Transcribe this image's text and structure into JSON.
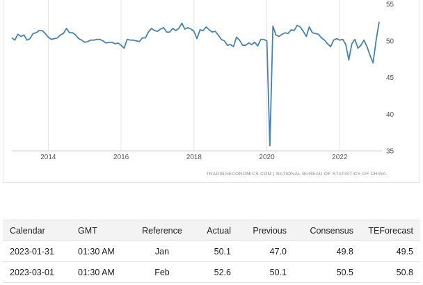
{
  "chart_data": {
    "type": "line",
    "y_ticks": [
      "55",
      "50",
      "45",
      "40",
      "35"
    ],
    "ylim": [
      35,
      55
    ],
    "x_ticks": [
      "2014",
      "2016",
      "2018",
      "2020",
      "2022"
    ],
    "x_range": [
      "2013-01",
      "2023-02"
    ],
    "grid": "vertical",
    "line_color": "#4682b4",
    "source": "TRADINGECONOMICS.COM | NATIONAL BUREAU OF STATISTICS OF CHINA",
    "x": [
      "2013-01",
      "2013-02",
      "2013-03",
      "2013-04",
      "2013-05",
      "2013-06",
      "2013-07",
      "2013-08",
      "2013-09",
      "2013-10",
      "2013-11",
      "2013-12",
      "2014-01",
      "2014-02",
      "2014-03",
      "2014-04",
      "2014-05",
      "2014-06",
      "2014-07",
      "2014-08",
      "2014-09",
      "2014-10",
      "2014-11",
      "2014-12",
      "2015-01",
      "2015-02",
      "2015-03",
      "2015-04",
      "2015-05",
      "2015-06",
      "2015-07",
      "2015-08",
      "2015-09",
      "2015-10",
      "2015-11",
      "2015-12",
      "2016-01",
      "2016-02",
      "2016-03",
      "2016-04",
      "2016-05",
      "2016-06",
      "2016-07",
      "2016-08",
      "2016-09",
      "2016-10",
      "2016-11",
      "2016-12",
      "2017-01",
      "2017-02",
      "2017-03",
      "2017-04",
      "2017-05",
      "2017-06",
      "2017-07",
      "2017-08",
      "2017-09",
      "2017-10",
      "2017-11",
      "2017-12",
      "2018-01",
      "2018-02",
      "2018-03",
      "2018-04",
      "2018-05",
      "2018-06",
      "2018-07",
      "2018-08",
      "2018-09",
      "2018-10",
      "2018-11",
      "2018-12",
      "2019-01",
      "2019-02",
      "2019-03",
      "2019-04",
      "2019-05",
      "2019-06",
      "2019-07",
      "2019-08",
      "2019-09",
      "2019-10",
      "2019-11",
      "2019-12",
      "2020-01",
      "2020-02",
      "2020-03",
      "2020-04",
      "2020-05",
      "2020-06",
      "2020-07",
      "2020-08",
      "2020-09",
      "2020-10",
      "2020-11",
      "2020-12",
      "2021-01",
      "2021-02",
      "2021-03",
      "2021-04",
      "2021-05",
      "2021-06",
      "2021-07",
      "2021-08",
      "2021-09",
      "2021-10",
      "2021-11",
      "2021-12",
      "2022-01",
      "2022-02",
      "2022-03",
      "2022-04",
      "2022-05",
      "2022-06",
      "2022-07",
      "2022-08",
      "2022-09",
      "2022-10",
      "2022-11",
      "2022-12",
      "2023-01",
      "2023-02"
    ],
    "values": [
      50.4,
      50.1,
      50.9,
      50.6,
      50.8,
      50.1,
      50.3,
      51.0,
      51.1,
      51.4,
      51.4,
      51.0,
      50.5,
      50.2,
      50.3,
      50.4,
      50.8,
      51.0,
      51.7,
      51.1,
      51.1,
      50.8,
      50.3,
      50.1,
      49.8,
      49.9,
      50.1,
      50.1,
      50.2,
      50.2,
      50.0,
      49.7,
      49.8,
      49.8,
      49.6,
      49.7,
      49.4,
      49.0,
      50.2,
      50.1,
      50.1,
      50.0,
      49.9,
      50.4,
      50.4,
      51.2,
      51.7,
      51.4,
      51.3,
      51.6,
      51.8,
      51.2,
      51.2,
      51.7,
      51.4,
      51.7,
      52.4,
      51.6,
      51.8,
      51.6,
      51.3,
      50.3,
      51.5,
      51.4,
      51.9,
      51.5,
      51.2,
      51.3,
      50.8,
      50.2,
      50.0,
      49.4,
      49.5,
      49.2,
      50.5,
      50.1,
      49.4,
      49.4,
      49.7,
      49.5,
      49.8,
      49.3,
      50.2,
      50.2,
      50.0,
      35.7,
      52.0,
      50.8,
      50.6,
      50.9,
      51.1,
      51.0,
      51.5,
      51.4,
      52.1,
      51.9,
      51.3,
      50.6,
      51.9,
      51.1,
      51.0,
      50.9,
      50.4,
      50.1,
      49.6,
      49.2,
      50.1,
      50.3,
      50.1,
      50.2,
      49.5,
      47.4,
      49.6,
      50.2,
      49.0,
      49.4,
      50.1,
      49.2,
      48.0,
      47.0,
      50.1,
      52.6
    ]
  },
  "table": {
    "headers": {
      "calendar": "Calendar",
      "gmt": "GMT",
      "reference": "Reference",
      "actual": "Actual",
      "previous": "Previous",
      "consensus": "Consensus",
      "teforecast": "TEForecast"
    },
    "rows": [
      {
        "date": "2023-01-31",
        "time": "01:30 AM",
        "reference": "Jan",
        "actual": "50.1",
        "previous": "47.0",
        "consensus": "49.8",
        "teforecast": "49.5"
      },
      {
        "date": "2023-03-01",
        "time": "01:30 AM",
        "reference": "Feb",
        "actual": "52.6",
        "previous": "50.1",
        "consensus": "50.5",
        "teforecast": "50.8"
      }
    ]
  }
}
